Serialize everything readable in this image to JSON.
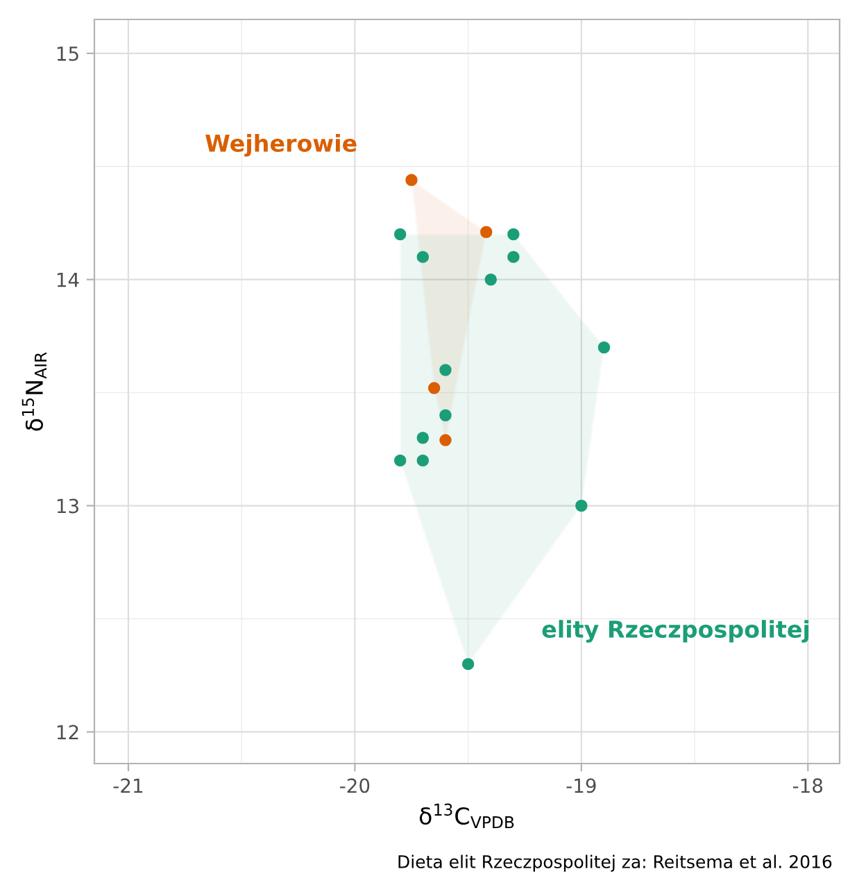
{
  "chart_data": {
    "type": "scatter",
    "xlabel": "δ$^{13}$C$_{VPDB}$",
    "ylabel": "δ$^{15}$N$_{AIR}$",
    "xlim": [
      -21.15,
      -17.86
    ],
    "ylim": [
      11.86,
      15.15
    ],
    "xticks": [
      -21,
      -20,
      -19,
      -18
    ],
    "yticks": [
      12,
      13,
      14,
      15
    ],
    "grid": true,
    "legend": false,
    "marker": "circle",
    "series": [
      {
        "name": "Wejherowie",
        "color": "#d95f02",
        "x": [
          -19.75,
          -19.42,
          -19.65,
          -19.6
        ],
        "values": [
          14.44,
          14.21,
          13.52,
          13.29
        ]
      },
      {
        "name": "elity Rzeczpospolitej",
        "color": "#1b9e77",
        "x": [
          -19.8,
          -19.7,
          -19.3,
          -19.3,
          -19.4,
          -18.9,
          -19.6,
          -19.6,
          -19.7,
          -19.8,
          -19.7,
          -19.0,
          -19.5
        ],
        "values": [
          14.2,
          14.1,
          14.2,
          14.1,
          14.0,
          13.7,
          13.6,
          13.4,
          13.3,
          13.2,
          13.2,
          13.0,
          12.3
        ]
      }
    ],
    "annotations": [
      "Dieta elit Rzeczpospolitej za: Reitsema et al. 2016"
    ]
  }
}
